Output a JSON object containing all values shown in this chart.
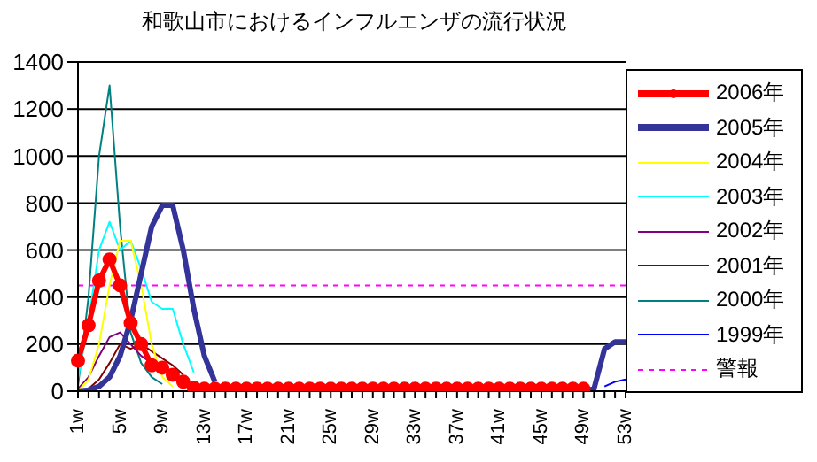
{
  "chart_data": {
    "type": "line",
    "title": "和歌山市におけるインフルエンザの流行状況",
    "categories": [
      "1w",
      null,
      null,
      null,
      "5w",
      null,
      null,
      null,
      "9w",
      null,
      null,
      null,
      "13w",
      null,
      null,
      null,
      "17w",
      null,
      null,
      null,
      "21w",
      null,
      null,
      null,
      "25w",
      null,
      null,
      null,
      "29w",
      null,
      null,
      null,
      "33w",
      null,
      null,
      null,
      "37w",
      null,
      null,
      null,
      "41w",
      null,
      null,
      null,
      "45w",
      null,
      null,
      null,
      "49w",
      null,
      null,
      null,
      "53w"
    ],
    "ylim": [
      0,
      1400
    ],
    "yticks": [
      0,
      200,
      400,
      600,
      800,
      1000,
      1200,
      1400
    ],
    "grid": "y",
    "legend": "right",
    "line_style": "solid",
    "marker": "none",
    "series": [
      {
        "name": "2006年",
        "color": "#ff0000",
        "marker": "circle",
        "values": [
          130,
          280,
          470,
          560,
          450,
          290,
          200,
          110,
          100,
          70,
          40,
          15,
          10,
          10,
          10,
          10,
          10,
          10,
          10,
          10,
          10,
          10,
          10,
          10,
          10,
          10,
          10,
          10,
          10,
          10,
          10,
          10,
          10,
          10,
          10,
          10,
          10,
          10,
          10,
          10,
          10,
          10,
          10,
          10,
          10,
          10,
          10,
          10,
          10,
          null,
          null,
          null,
          null
        ]
      },
      {
        "name": "2005年",
        "color": "#333399",
        "values": [
          0,
          5,
          20,
          60,
          150,
          300,
          500,
          700,
          790,
          790,
          600,
          350,
          150,
          40,
          null,
          null,
          null,
          null,
          null,
          null,
          null,
          null,
          null,
          null,
          null,
          null,
          null,
          null,
          null,
          null,
          null,
          null,
          null,
          null,
          null,
          null,
          null,
          null,
          null,
          null,
          null,
          null,
          null,
          null,
          null,
          null,
          null,
          null,
          0,
          10,
          180,
          210,
          210
        ]
      },
      {
        "name": "2004年",
        "color": "#ffff00",
        "values": [
          0,
          50,
          200,
          450,
          640,
          640,
          450,
          200,
          60,
          20,
          null,
          null,
          null,
          null,
          null,
          null,
          null,
          null,
          null,
          null,
          null,
          null,
          null,
          null,
          null,
          null,
          null,
          null,
          null,
          null,
          null,
          null,
          null,
          null,
          null,
          null,
          null,
          null,
          null,
          null,
          null,
          null,
          null,
          null,
          null,
          null,
          null,
          null,
          null,
          null,
          null,
          null,
          null
        ]
      },
      {
        "name": "2003年",
        "color": "#00ffff",
        "values": [
          50,
          300,
          600,
          720,
          600,
          640,
          520,
          380,
          350,
          350,
          200,
          80,
          null,
          null,
          null,
          null,
          null,
          null,
          null,
          null,
          null,
          null,
          null,
          null,
          null,
          null,
          null,
          null,
          null,
          null,
          null,
          null,
          null,
          null,
          null,
          null,
          null,
          null,
          null,
          null,
          null,
          null,
          null,
          null,
          null,
          null,
          null,
          null,
          null,
          null,
          null,
          null,
          null
        ]
      },
      {
        "name": "2002年",
        "color": "#800080",
        "values": [
          10,
          60,
          150,
          230,
          250,
          200,
          150,
          120,
          100,
          80,
          null,
          null,
          null,
          null,
          null,
          null,
          null,
          null,
          null,
          null,
          null,
          null,
          null,
          null,
          null,
          null,
          null,
          null,
          null,
          null,
          null,
          null,
          null,
          null,
          null,
          null,
          null,
          null,
          null,
          null,
          null,
          null,
          null,
          null,
          null,
          null,
          null,
          null,
          null,
          null,
          null,
          null,
          null
        ]
      },
      {
        "name": "2001年",
        "color": "#800000",
        "values": [
          0,
          10,
          50,
          120,
          200,
          180,
          200,
          170,
          140,
          110,
          70,
          null,
          null,
          null,
          null,
          null,
          null,
          null,
          null,
          null,
          null,
          null,
          null,
          null,
          null,
          null,
          null,
          null,
          null,
          null,
          null,
          null,
          null,
          null,
          null,
          null,
          null,
          null,
          null,
          null,
          null,
          null,
          null,
          null,
          null,
          null,
          null,
          null,
          null,
          null,
          null,
          null,
          null
        ]
      },
      {
        "name": "2000年",
        "color": "#008080",
        "values": [
          20,
          400,
          1000,
          1300,
          700,
          250,
          120,
          60,
          30,
          null,
          null,
          null,
          null,
          null,
          null,
          null,
          null,
          null,
          null,
          null,
          null,
          null,
          null,
          null,
          null,
          null,
          null,
          null,
          null,
          null,
          null,
          null,
          null,
          null,
          null,
          null,
          null,
          null,
          null,
          null,
          null,
          null,
          null,
          null,
          null,
          null,
          null,
          null,
          null,
          null,
          null,
          null,
          null
        ]
      },
      {
        "name": "1999年",
        "color": "#0000ff",
        "values": [
          null,
          null,
          null,
          null,
          null,
          null,
          null,
          null,
          null,
          null,
          null,
          null,
          null,
          null,
          null,
          null,
          null,
          null,
          null,
          null,
          null,
          null,
          null,
          null,
          null,
          null,
          null,
          null,
          null,
          null,
          null,
          null,
          null,
          null,
          null,
          null,
          null,
          null,
          null,
          null,
          null,
          null,
          null,
          null,
          null,
          null,
          null,
          null,
          null,
          null,
          20,
          40,
          50
        ]
      }
    ],
    "ref_lines": [
      {
        "axis": "y",
        "value": 450,
        "label": "警報",
        "color": "#ff00ff",
        "line_style": "dashed"
      }
    ]
  }
}
